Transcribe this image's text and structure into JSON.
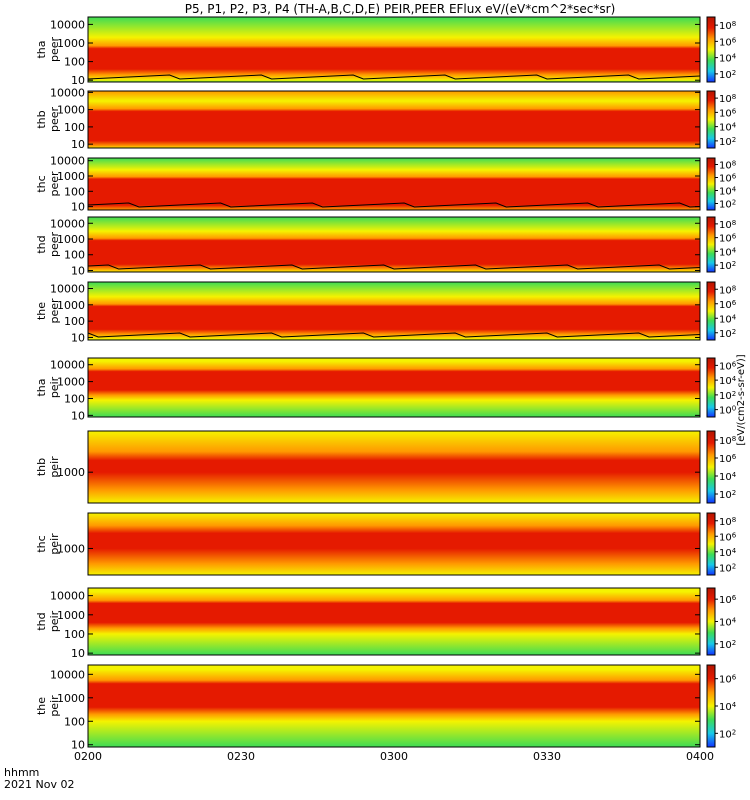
{
  "page": {
    "title": "P5, P1, P2, P3, P4 (TH-A,B,C,D,E) PEIR,PEER EFlux eV/(eV*cm^2*sec*sr)",
    "corner_top": "hhmm",
    "corner_bottom": "2021 Nov 02"
  },
  "colorbar_label": "[eV/(cm2-s-sr-eV)]",
  "colors": {
    "red": "#e51a00",
    "orange": "#ff9900",
    "yellow": "#f5f300",
    "green": "#3ddc55",
    "cyan": "#18c9e8",
    "blue": "#1133ff",
    "darkred": "#b41400"
  },
  "chart_data": {
    "type": "heatmap",
    "title": "P5, P1, P2, P3, P4 (TH-A,B,C,D,E) PEIR,PEER EFlux eV/(eV*cm^2*sec*sr)",
    "x_tick_labels": [
      "0200",
      "0230",
      "0300",
      "0330",
      "0400"
    ],
    "x_range": [
      "0200",
      "0400"
    ],
    "y_scale": "log",
    "colorbar_scale": "log",
    "panels": [
      {
        "line1": "tha",
        "line2": "peer",
        "y_ticks": [
          "10",
          "100",
          "1000",
          "10000"
        ],
        "ylim": [
          8,
          25000
        ],
        "cbar_ticks": [
          "10^8",
          "10^6",
          "10^4",
          "10^2"
        ],
        "peak_log": [
          1.6,
          2.7
        ],
        "bg": "green",
        "trace": true
      },
      {
        "line1": "thb",
        "line2": "peer",
        "y_ticks": [
          "10",
          "100",
          "1000",
          "10000"
        ],
        "ylim": [
          6,
          12000
        ],
        "cbar_ticks": [
          "10^8",
          "10^6",
          "10^4",
          "10^2"
        ],
        "peak_log": [
          1.2,
          2.9
        ],
        "bg": "orange",
        "trace": false
      },
      {
        "line1": "thc",
        "line2": "peer",
        "y_ticks": [
          "10",
          "100",
          "1000",
          "10000"
        ],
        "ylim": [
          6,
          15000
        ],
        "cbar_ticks": [
          "10^8",
          "10^6",
          "10^4",
          "10^2"
        ],
        "peak_log": [
          1.1,
          2.8
        ],
        "bg": "green",
        "trace": true
      },
      {
        "line1": "thd",
        "line2": "peer",
        "y_ticks": [
          "10",
          "100",
          "1000",
          "10000"
        ],
        "ylim": [
          8,
          25000
        ],
        "cbar_ticks": [
          "10^8",
          "10^6",
          "10^4",
          "10^2"
        ],
        "peak_log": [
          1.4,
          2.9
        ],
        "bg": "green",
        "trace": true
      },
      {
        "line1": "the",
        "line2": "peer",
        "y_ticks": [
          "10",
          "100",
          "1000",
          "10000"
        ],
        "ylim": [
          7,
          25000
        ],
        "cbar_ticks": [
          "10^8",
          "10^6",
          "10^4",
          "10^2"
        ],
        "peak_log": [
          1.5,
          2.9
        ],
        "bg": "green",
        "trace": true
      },
      {
        "line1": "tha",
        "line2": "peir",
        "y_ticks": [
          "10",
          "100",
          "1000",
          "10000"
        ],
        "ylim": [
          8,
          25000
        ],
        "cbar_ticks": [
          "10^6",
          "10^4",
          "10^2",
          "10^0"
        ],
        "peak_log": [
          2.5,
          3.6
        ],
        "bg": "yellow",
        "trace": false
      },
      {
        "line1": "thb",
        "line2": "peir",
        "y_ticks": [
          "1000"
        ],
        "ylim": [
          300,
          5000
        ],
        "cbar_ticks": [
          "10^8",
          "10^6",
          "10^4",
          "10^2"
        ],
        "peak_log": [
          3.0,
          3.2
        ],
        "bg": "green",
        "trace": false
      },
      {
        "line1": "thc",
        "line2": "peir",
        "y_ticks": [
          "1000"
        ],
        "ylim": [
          300,
          5000
        ],
        "cbar_ticks": [
          "10^8",
          "10^6",
          "10^4",
          "10^2"
        ],
        "peak_log": [
          3.0,
          3.3
        ],
        "bg": "cyan",
        "trace": false
      },
      {
        "line1": "thd",
        "line2": "peir",
        "y_ticks": [
          "10",
          "100",
          "1000",
          "10000"
        ],
        "ylim": [
          8,
          25000
        ],
        "cbar_ticks": [
          "10^6",
          "10^4",
          "10^2"
        ],
        "peak_log": [
          2.6,
          3.6
        ],
        "bg": "yellow",
        "trace": false
      },
      {
        "line1": "the",
        "line2": "peir",
        "y_ticks": [
          "10",
          "100",
          "1000",
          "10000"
        ],
        "ylim": [
          8,
          25000
        ],
        "cbar_ticks": [
          "10^6",
          "10^4",
          "10^2"
        ],
        "peak_log": [
          2.6,
          3.6
        ],
        "bg": "yellow",
        "trace": false
      }
    ]
  }
}
